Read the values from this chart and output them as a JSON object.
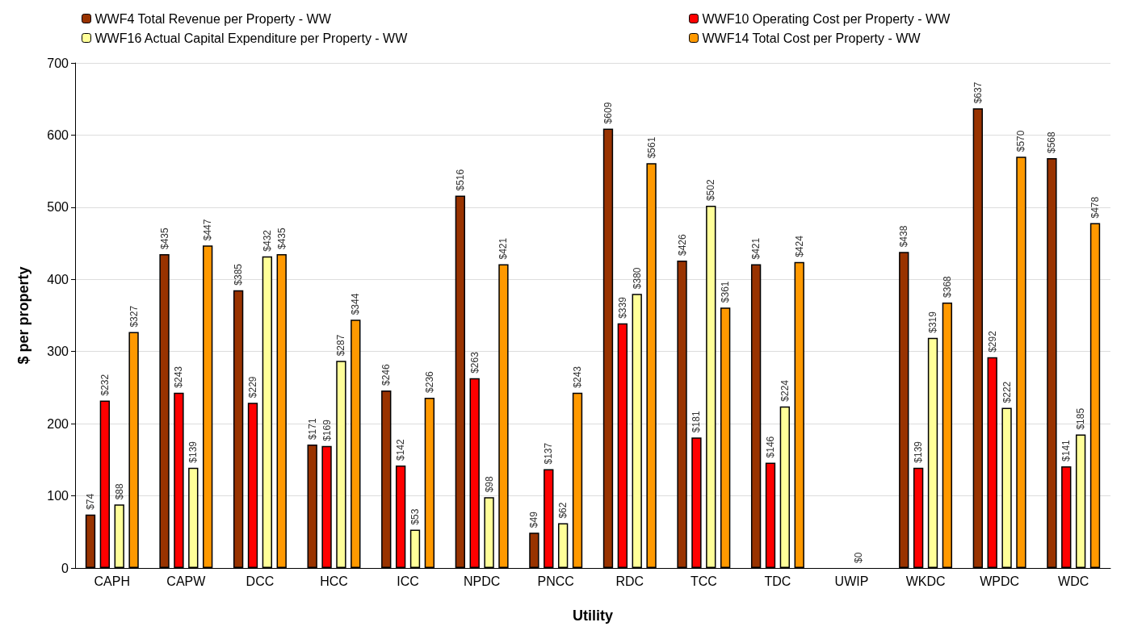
{
  "chart_data": {
    "type": "bar",
    "xlabel": "Utility",
    "ylabel": "$ per property",
    "categories": [
      "CAPH",
      "CAPW",
      "DCC",
      "HCC",
      "ICC",
      "NPDC",
      "PNCC",
      "RDC",
      "TCC",
      "TDC",
      "UWIP",
      "WKDC",
      "WPDC",
      "WDC"
    ],
    "series": [
      {
        "name": "WWF4 Total Revenue per Property - WW",
        "color": "#993300",
        "values": [
          74,
          435,
          385,
          171,
          246,
          516,
          49,
          609,
          426,
          421,
          null,
          438,
          637,
          568
        ],
        "value_labels": [
          "$74",
          "$435",
          "$385",
          "$171",
          "$246",
          "$516",
          "$49",
          "$609",
          "$426",
          "$421",
          null,
          "$438",
          "$637",
          "$568"
        ]
      },
      {
        "name": "WWF10 Operating Cost per Property - WW",
        "color": "#ff0000",
        "values": [
          232,
          243,
          229,
          169,
          142,
          263,
          137,
          339,
          181,
          146,
          null,
          139,
          292,
          141
        ],
        "value_labels": [
          "$232",
          "$243",
          "$229",
          "$169",
          "$142",
          "$263",
          "$137",
          "$339",
          "$181",
          "$146",
          null,
          "$139",
          "$292",
          "$141"
        ]
      },
      {
        "name": "WWF16 Actual Capital Expenditure per Property - WW",
        "color": "#ffff99",
        "values": [
          88,
          139,
          432,
          287,
          53,
          98,
          62,
          380,
          502,
          224,
          0,
          319,
          222,
          185
        ],
        "value_labels": [
          "$88",
          "$139",
          "$432",
          "$287",
          "$53",
          "$98",
          "$62",
          "$380",
          "$502",
          "$224",
          "$0",
          "$319",
          "$222",
          "$185"
        ]
      },
      {
        "name": "WWF14 Total Cost per Property - WW",
        "color": "#ff9900",
        "values": [
          327,
          447,
          435,
          344,
          236,
          421,
          243,
          561,
          361,
          424,
          null,
          368,
          570,
          478
        ],
        "value_labels": [
          "$327",
          "$447",
          "$435",
          "$344",
          "$236",
          "$421",
          "$243",
          "$561",
          "$361",
          "$424",
          null,
          "$368",
          "$570",
          "$478"
        ]
      }
    ],
    "ylim": [
      0,
      700
    ],
    "yticks": [
      0,
      100,
      200,
      300,
      400,
      500,
      600,
      700
    ],
    "grid": "y",
    "legend": "top"
  }
}
